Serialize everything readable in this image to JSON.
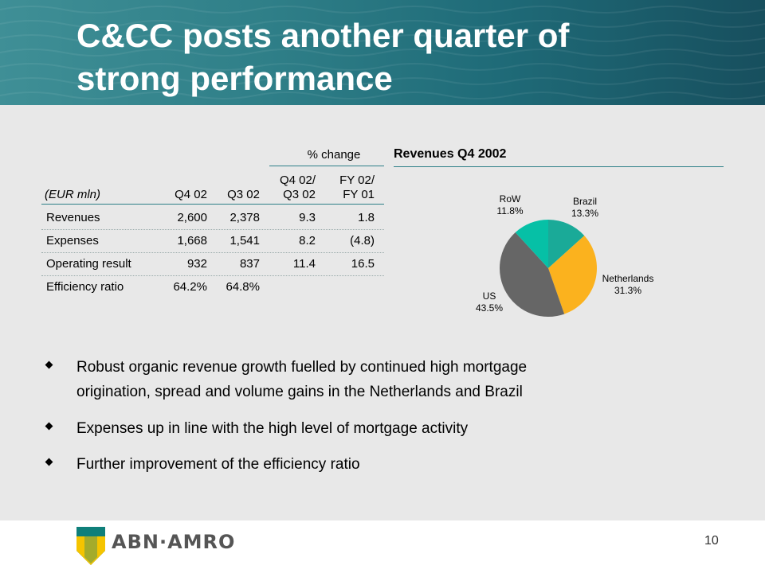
{
  "title_line1": "C&CC posts another quarter of",
  "title_line2": "strong performance",
  "table": {
    "pct_change_label": "% change",
    "unit_label": "(EUR mln)",
    "col_q4": "Q4 02",
    "col_q3": "Q3 02",
    "col_q4q3_line1": "Q4 02/",
    "col_q4q3_line2": "Q3 02",
    "col_fy_line1": "FY 02/",
    "col_fy_line2": "FY 01",
    "rows": [
      {
        "label": "Revenues",
        "q4": "2,600",
        "q3": "2,378",
        "q4q3": "9.3",
        "fy": "1.8"
      },
      {
        "label": "Expenses",
        "q4": "1,668",
        "q3": "1,541",
        "q4q3": "8.2",
        "fy": "(4.8)"
      },
      {
        "label": "Operating result",
        "q4": "932",
        "q3": "837",
        "q4q3": "11.4",
        "fy": "16.5"
      },
      {
        "label": "Efficiency ratio",
        "q4": "64.2%",
        "q3": "64.8%",
        "q4q3": "",
        "fy": ""
      }
    ]
  },
  "pie": {
    "title": "Revenues Q4 2002",
    "slices": [
      {
        "name": "Brazil",
        "pct": "13.3%",
        "value": 13.3,
        "color": "#1aaa98"
      },
      {
        "name": "Netherlands",
        "pct": "31.3%",
        "value": 31.3,
        "color": "#fbb21e"
      },
      {
        "name": "US",
        "pct": "43.5%",
        "value": 43.5,
        "color": "#666666"
      },
      {
        "name": "RoW",
        "pct": "11.8%",
        "value": 11.8,
        "color": "#06c0a6"
      }
    ]
  },
  "bullets": [
    {
      "line1": "Robust organic revenue growth fuelled by continued high mortgage",
      "line2": "origination, spread and volume gains in the Netherlands and Brazil"
    },
    {
      "line1": "Expenses up in line with the high level of mortgage activity",
      "line2": ""
    },
    {
      "line1": "Further improvement of the efficiency ratio",
      "line2": ""
    }
  ],
  "footer": {
    "logo_text": "ABN·AMRO",
    "page_number": "10"
  },
  "colors": {
    "header_teal": "#2f7f88",
    "background": "#e8e8e8"
  }
}
